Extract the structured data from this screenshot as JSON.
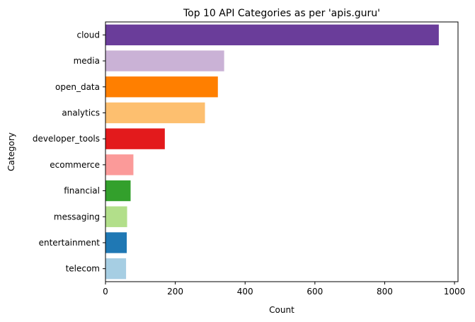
{
  "chart_data": {
    "type": "bar",
    "orientation": "horizontal",
    "title": "Top 10 API Categories as per 'apis.guru'",
    "xlabel": "Count",
    "ylabel": "Category",
    "xlim": [
      0,
      1010
    ],
    "xticks": [
      0,
      200,
      400,
      600,
      800,
      1000
    ],
    "grid": false,
    "categories": [
      "cloud",
      "media",
      "open_data",
      "analytics",
      "developer_tools",
      "ecommerce",
      "financial",
      "messaging",
      "entertainment",
      "telecom"
    ],
    "values": [
      955,
      340,
      322,
      285,
      170,
      80,
      72,
      62,
      61,
      59
    ],
    "colors": [
      "#6a3d9a",
      "#cab2d6",
      "#ff7f00",
      "#fdbf6f",
      "#e31a1c",
      "#fb9a99",
      "#33a02c",
      "#b2df8a",
      "#1f78b4",
      "#a6cee3"
    ]
  }
}
